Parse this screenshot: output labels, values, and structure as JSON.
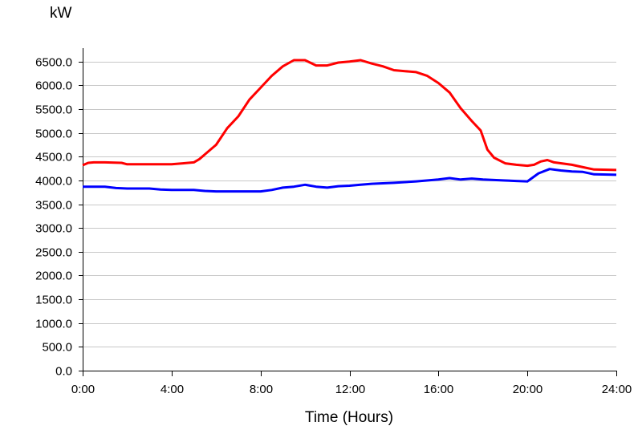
{
  "chart_data": {
    "type": "line",
    "title": "",
    "xlabel": "Time (Hours)",
    "ylabel": "kW",
    "xlim": [
      0,
      24
    ],
    "ylim": [
      0,
      6750
    ],
    "grid": "horizontal",
    "x_ticks": [
      {
        "value": 0,
        "label": "0:00"
      },
      {
        "value": 4,
        "label": "4:00"
      },
      {
        "value": 8,
        "label": "8:00"
      },
      {
        "value": 12,
        "label": "12:00"
      },
      {
        "value": 16,
        "label": "16:00"
      },
      {
        "value": 20,
        "label": "20:00"
      },
      {
        "value": 24,
        "label": "24:00"
      }
    ],
    "y_ticks": [
      {
        "value": 0,
        "label": "0.0"
      },
      {
        "value": 500,
        "label": "500.0"
      },
      {
        "value": 1000,
        "label": "1000.0"
      },
      {
        "value": 1500,
        "label": "1500.0"
      },
      {
        "value": 2000,
        "label": "2000.0"
      },
      {
        "value": 2500,
        "label": "2500.0"
      },
      {
        "value": 3000,
        "label": "3000.0"
      },
      {
        "value": 3500,
        "label": "3500.0"
      },
      {
        "value": 4000,
        "label": "4000.0"
      },
      {
        "value": 4500,
        "label": "4500.0"
      },
      {
        "value": 5000,
        "label": "5000.0"
      },
      {
        "value": 5500,
        "label": "5500.0"
      },
      {
        "value": 6000,
        "label": "6000.0"
      },
      {
        "value": 6500,
        "label": "6500.0"
      }
    ],
    "series": [
      {
        "color": "#ff0000",
        "points": [
          [
            0,
            4320
          ],
          [
            0.25,
            4370
          ],
          [
            0.5,
            4380
          ],
          [
            1,
            4380
          ],
          [
            1.75,
            4370
          ],
          [
            2,
            4340
          ],
          [
            3,
            4340
          ],
          [
            4,
            4340
          ],
          [
            4.5,
            4360
          ],
          [
            5,
            4380
          ],
          [
            5.25,
            4450
          ],
          [
            5.5,
            4550
          ],
          [
            6,
            4750
          ],
          [
            6.5,
            5100
          ],
          [
            7,
            5350
          ],
          [
            7.5,
            5700
          ],
          [
            8,
            5950
          ],
          [
            8.5,
            6200
          ],
          [
            9,
            6400
          ],
          [
            9.5,
            6530
          ],
          [
            10,
            6530
          ],
          [
            10.5,
            6420
          ],
          [
            11,
            6420
          ],
          [
            11.5,
            6480
          ],
          [
            12,
            6500
          ],
          [
            12.5,
            6530
          ],
          [
            13,
            6460
          ],
          [
            13.5,
            6400
          ],
          [
            14,
            6320
          ],
          [
            14.5,
            6300
          ],
          [
            15,
            6280
          ],
          [
            15.5,
            6200
          ],
          [
            16,
            6050
          ],
          [
            16.5,
            5850
          ],
          [
            17,
            5520
          ],
          [
            17.5,
            5250
          ],
          [
            17.9,
            5050
          ],
          [
            18.2,
            4650
          ],
          [
            18.5,
            4480
          ],
          [
            19,
            4360
          ],
          [
            19.5,
            4330
          ],
          [
            20,
            4310
          ],
          [
            20.3,
            4330
          ],
          [
            20.6,
            4400
          ],
          [
            20.9,
            4430
          ],
          [
            21.2,
            4380
          ],
          [
            22,
            4330
          ],
          [
            22.5,
            4280
          ],
          [
            23,
            4230
          ],
          [
            24,
            4220
          ]
        ]
      },
      {
        "color": "#0000ff",
        "points": [
          [
            0,
            3870
          ],
          [
            1,
            3870
          ],
          [
            1.5,
            3840
          ],
          [
            2,
            3830
          ],
          [
            3,
            3830
          ],
          [
            3.5,
            3810
          ],
          [
            4,
            3800
          ],
          [
            5,
            3800
          ],
          [
            5.5,
            3780
          ],
          [
            6,
            3770
          ],
          [
            7,
            3770
          ],
          [
            8,
            3770
          ],
          [
            8.5,
            3800
          ],
          [
            9,
            3850
          ],
          [
            9.5,
            3870
          ],
          [
            10,
            3910
          ],
          [
            10.5,
            3870
          ],
          [
            11,
            3850
          ],
          [
            11.5,
            3880
          ],
          [
            12,
            3890
          ],
          [
            12.5,
            3910
          ],
          [
            13,
            3930
          ],
          [
            14,
            3950
          ],
          [
            15,
            3980
          ],
          [
            16,
            4020
          ],
          [
            16.5,
            4050
          ],
          [
            17,
            4020
          ],
          [
            17.5,
            4040
          ],
          [
            18,
            4020
          ],
          [
            19,
            4000
          ],
          [
            19.5,
            3990
          ],
          [
            20,
            3980
          ],
          [
            20.5,
            4150
          ],
          [
            21,
            4240
          ],
          [
            21.5,
            4210
          ],
          [
            22,
            4190
          ],
          [
            22.5,
            4180
          ],
          [
            23,
            4130
          ],
          [
            24,
            4120
          ]
        ]
      }
    ]
  }
}
